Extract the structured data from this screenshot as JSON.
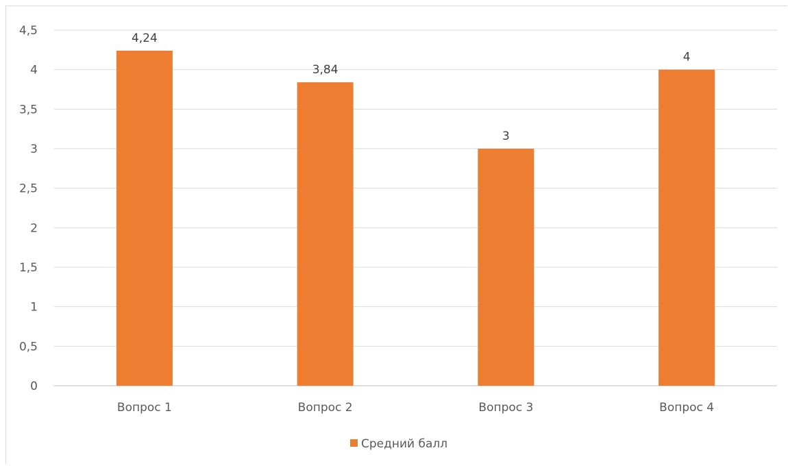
{
  "chart_data": {
    "type": "bar",
    "title": "",
    "xlabel": "",
    "ylabel": "",
    "categories": [
      "Вопрос 1",
      "Вопрос 2",
      "Вопрос 3",
      "Вопрос 4"
    ],
    "series": [
      {
        "name": "Средний балл",
        "values": [
          4.24,
          3.84,
          3,
          4
        ],
        "labels": [
          "4,24",
          "3,84",
          "3",
          "4"
        ]
      }
    ],
    "ylim": [
      0,
      4.5
    ],
    "yticks": [
      0,
      0.5,
      1,
      1.5,
      2,
      2.5,
      3,
      3.5,
      4,
      4.5
    ],
    "ytick_labels": [
      "0",
      "0,5",
      "1",
      "1,5",
      "2",
      "2,5",
      "3",
      "3,5",
      "4",
      "4,5"
    ],
    "grid": true,
    "legend_position": "bottom",
    "colors": {
      "bar": "#ED7D31",
      "grid": "#d9d9d9",
      "text": "#595959",
      "label": "#404040"
    }
  }
}
